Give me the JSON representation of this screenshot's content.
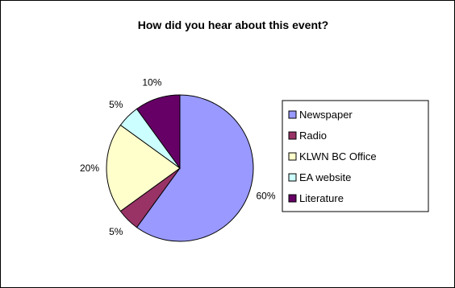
{
  "chart_data": {
    "type": "pie",
    "title": "How did you hear about this event?",
    "categories": [
      "Newspaper",
      "Radio",
      "KLWN BC Office",
      "EA website",
      "Literature"
    ],
    "values": [
      60,
      5,
      20,
      5,
      10
    ],
    "labels": [
      "60%",
      "5%",
      "20%",
      "5%",
      "10%"
    ],
    "colors": [
      "#9999ff",
      "#993366",
      "#ffffcc",
      "#ccffff",
      "#660066"
    ],
    "legend": "right",
    "start_angle": "top",
    "direction": "clockwise"
  }
}
